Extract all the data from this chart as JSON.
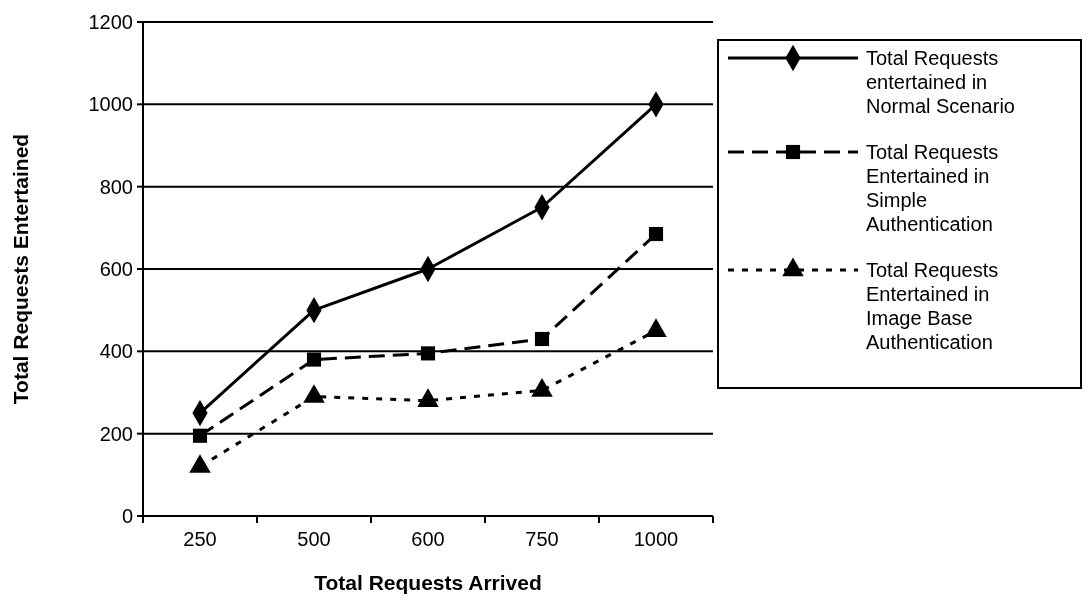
{
  "chart_data": {
    "type": "line",
    "xlabel": "Total Requests Arrived",
    "ylabel": "Total Requests Entertained",
    "categories": [
      "250",
      "500",
      "600",
      "750",
      "1000"
    ],
    "series": [
      {
        "name": "Total Requests entertained in Normal Scenario",
        "color": "#000000",
        "marker": "diamond",
        "line_style": "solid",
        "values": [
          250,
          500,
          600,
          750,
          1000
        ]
      },
      {
        "name": "Total Requests Entertained in Simple Authentication",
        "color": "#000000",
        "marker": "square",
        "line_style": "dashed",
        "values": [
          195,
          380,
          395,
          430,
          685
        ]
      },
      {
        "name": "Total Requests Entertained in Image Base Authentication",
        "color": "#000000",
        "marker": "triangle",
        "line_style": "dotted",
        "values": [
          120,
          290,
          280,
          305,
          450
        ]
      }
    ],
    "ylim": [
      0,
      1200
    ],
    "yticks": [
      0,
      200,
      400,
      600,
      800,
      1000,
      1200
    ],
    "grid": "y",
    "legend": "right"
  }
}
